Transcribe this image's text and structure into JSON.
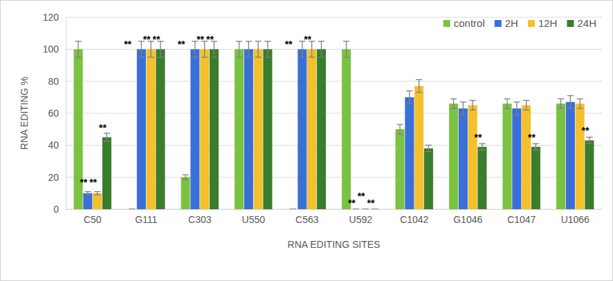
{
  "chart_data": {
    "type": "bar",
    "x_label": "RNA EDITING SITES",
    "y_label": "RNA EDITING %",
    "categories": [
      "C50",
      "G111",
      "C303",
      "U550",
      "C563",
      "U592",
      "C1042",
      "G1046",
      "C1047",
      "U1066"
    ],
    "series": [
      {
        "name": "control",
        "color": "#7cc242",
        "values": [
          100,
          0,
          20,
          100,
          0,
          100,
          50,
          66,
          66,
          66
        ],
        "errors": [
          5,
          0,
          1.5,
          5,
          0,
          5,
          3,
          3,
          3,
          3
        ]
      },
      {
        "name": "2H",
        "color": "#3a6fd8",
        "values": [
          10,
          100,
          100,
          100,
          100,
          0,
          70,
          63,
          63,
          67
        ],
        "errors": [
          1,
          5,
          5,
          5,
          5,
          0,
          4,
          4,
          4,
          4
        ]
      },
      {
        "name": "12H",
        "color": "#f4c02c",
        "values": [
          10,
          100,
          100,
          100,
          100,
          0,
          77,
          65,
          65,
          66
        ],
        "errors": [
          1,
          5,
          5,
          5,
          5,
          0,
          4,
          3,
          3,
          3
        ]
      },
      {
        "name": "24H",
        "color": "#3a7d2c",
        "values": [
          45,
          100,
          100,
          100,
          100,
          0,
          38,
          39,
          39,
          43
        ],
        "errors": [
          2.5,
          5,
          5,
          5,
          5,
          0,
          2,
          2,
          2,
          2
        ]
      }
    ],
    "annotations": [
      {
        "text": "**",
        "category": 0,
        "series": 1,
        "y": 14
      },
      {
        "text": "**",
        "category": 0,
        "series": 2,
        "y": 14
      },
      {
        "text": "**",
        "category": 0,
        "series": 3,
        "y": 48
      },
      {
        "text": "**",
        "category": 1,
        "series": 0,
        "y": 100
      },
      {
        "text": "**",
        "category": 1,
        "series": 2,
        "y": 103
      },
      {
        "text": "**",
        "category": 1,
        "series": 3,
        "y": 103
      },
      {
        "text": "**",
        "category": 2,
        "series": 0,
        "y": 100
      },
      {
        "text": "**",
        "category": 2,
        "series": 2,
        "y": 103
      },
      {
        "text": "**",
        "category": 2,
        "series": 3,
        "y": 103
      },
      {
        "text": "**",
        "category": 4,
        "series": 0,
        "y": 100
      },
      {
        "text": "**",
        "category": 4,
        "series": 2,
        "y": 103
      },
      {
        "text": "**",
        "category": 5,
        "series": 1,
        "y": 1
      },
      {
        "text": "**",
        "category": 5,
        "series": 2,
        "y": 5
      },
      {
        "text": "**",
        "category": 5,
        "series": 3,
        "y": 1
      },
      {
        "text": "**",
        "category": 7,
        "series": 3,
        "y": 42
      },
      {
        "text": "**",
        "category": 8,
        "series": 3,
        "y": 42
      },
      {
        "text": "**",
        "category": 9,
        "series": 3,
        "y": 46
      }
    ],
    "ylim": [
      0,
      120
    ],
    "yticks": [
      0,
      20,
      40,
      60,
      80,
      100,
      120
    ],
    "grid": true,
    "legend": "top-right"
  }
}
